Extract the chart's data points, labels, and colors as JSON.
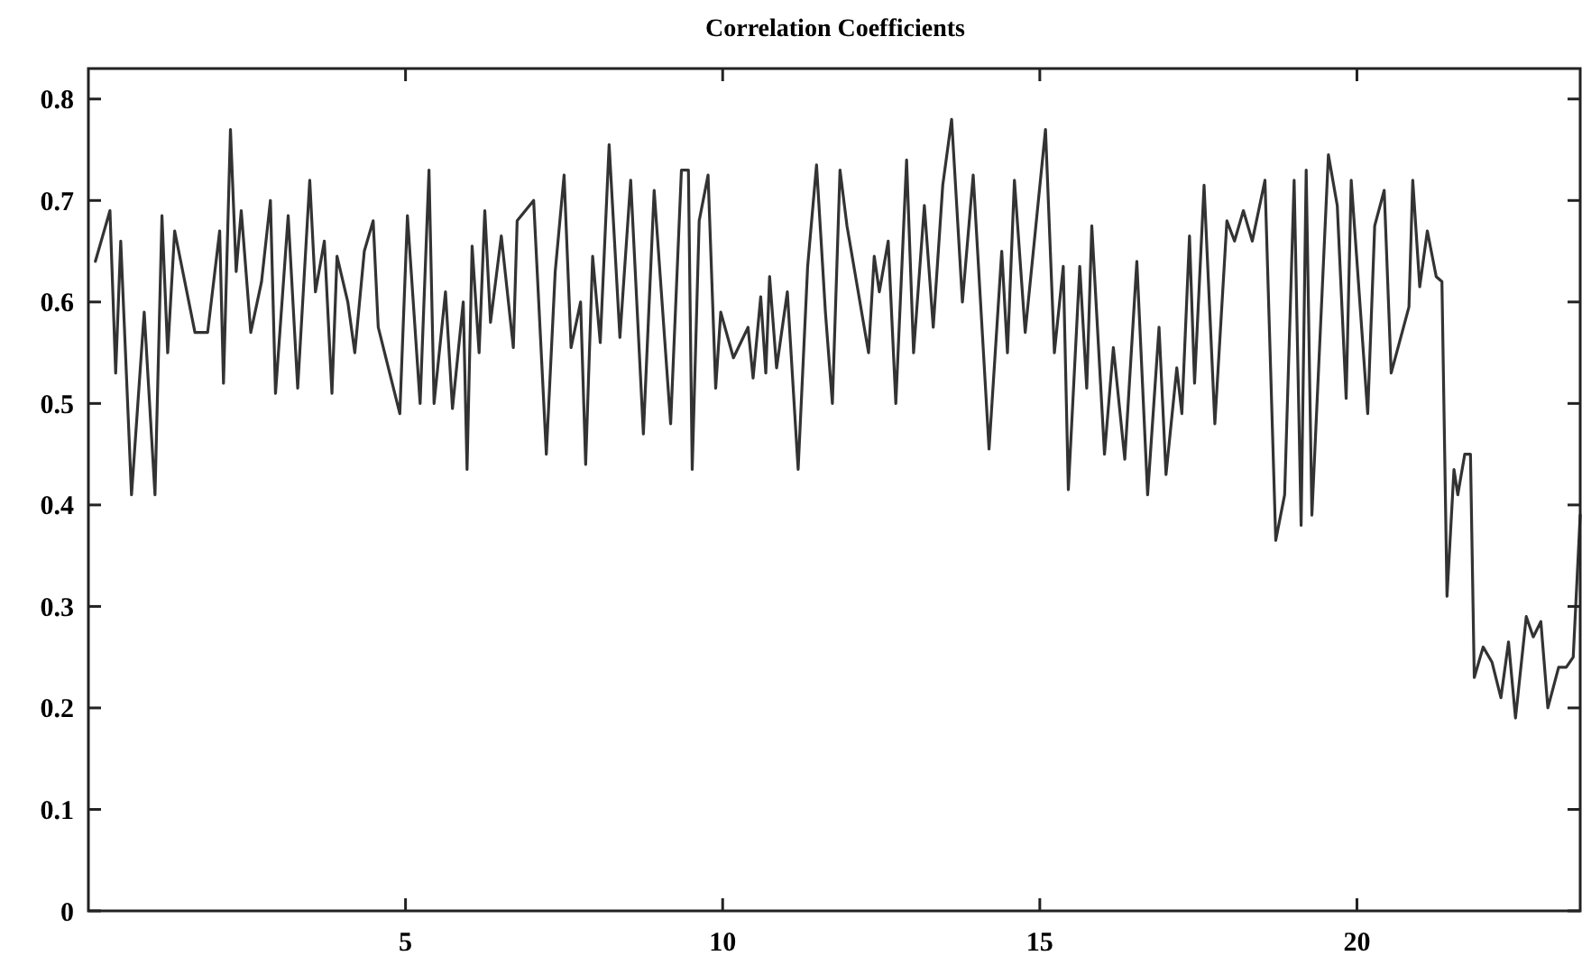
{
  "chart_data": {
    "type": "line",
    "title": "Correlation Coefficients",
    "xlim": [
      0,
      23.52
    ],
    "xticks": [
      5,
      10,
      15,
      20
    ],
    "ylim": [
      0,
      0.83
    ],
    "yticks": [
      0,
      0.1,
      0.2,
      0.3,
      0.4,
      0.5,
      0.6,
      0.7,
      0.8
    ],
    "grid": false,
    "marker": "none",
    "line_style": "solid",
    "series": [
      {
        "color": "#333333",
        "x": [
          0.11,
          0.34,
          0.43,
          0.51,
          0.68,
          0.88,
          1.05,
          1.16,
          1.25,
          1.36,
          1.68,
          1.88,
          2.07,
          2.13,
          2.24,
          2.33,
          2.41,
          2.56,
          2.73,
          2.87,
          2.95,
          3.15,
          3.3,
          3.49,
          3.58,
          3.72,
          3.84,
          3.92,
          4.09,
          4.2,
          4.35,
          4.49,
          4.57,
          4.91,
          5.03,
          5.23,
          5.37,
          5.45,
          5.63,
          5.74,
          5.91,
          5.97,
          6.05,
          6.16,
          6.25,
          6.34,
          6.51,
          6.7,
          6.76,
          7.02,
          7.22,
          7.36,
          7.5,
          7.61,
          7.76,
          7.84,
          7.95,
          8.07,
          8.21,
          8.38,
          8.55,
          8.75,
          8.92,
          9.18,
          9.35,
          9.46,
          9.52,
          9.63,
          9.77,
          9.89,
          9.97,
          10.17,
          10.4,
          10.48,
          10.6,
          10.68,
          10.74,
          10.85,
          11.02,
          11.19,
          11.34,
          11.48,
          11.62,
          11.73,
          11.85,
          11.96,
          12.3,
          12.39,
          12.47,
          12.61,
          12.73,
          12.9,
          13.01,
          13.18,
          13.32,
          13.47,
          13.61,
          13.78,
          13.95,
          14.2,
          14.4,
          14.49,
          14.6,
          14.77,
          15.09,
          15.23,
          15.37,
          15.45,
          15.63,
          15.74,
          15.82,
          16.02,
          16.16,
          16.34,
          16.53,
          16.7,
          16.88,
          16.99,
          17.16,
          17.24,
          17.36,
          17.44,
          17.59,
          17.76,
          17.95,
          18.07,
          18.21,
          18.35,
          18.55,
          18.72,
          18.86,
          19.01,
          19.12,
          19.2,
          19.29,
          19.55,
          19.69,
          19.83,
          19.91,
          20.17,
          20.28,
          20.43,
          20.54,
          20.82,
          20.88,
          20.99,
          21.11,
          21.25,
          21.34,
          21.42,
          21.53,
          21.59,
          21.7,
          21.79,
          21.85,
          21.99,
          22.13,
          22.27,
          22.39,
          22.5,
          22.67,
          22.78,
          22.9,
          23.01,
          23.18,
          23.3,
          23.41,
          23.52
        ],
        "values": [
          0.64,
          0.69,
          0.53,
          0.66,
          0.41,
          0.59,
          0.41,
          0.685,
          0.55,
          0.67,
          0.57,
          0.57,
          0.67,
          0.52,
          0.77,
          0.63,
          0.69,
          0.57,
          0.62,
          0.7,
          0.51,
          0.685,
          0.515,
          0.72,
          0.61,
          0.66,
          0.51,
          0.645,
          0.6,
          0.55,
          0.65,
          0.68,
          0.575,
          0.49,
          0.685,
          0.5,
          0.73,
          0.5,
          0.61,
          0.495,
          0.6,
          0.435,
          0.655,
          0.55,
          0.69,
          0.58,
          0.665,
          0.555,
          0.68,
          0.7,
          0.45,
          0.63,
          0.725,
          0.555,
          0.6,
          0.44,
          0.645,
          0.56,
          0.755,
          0.565,
          0.72,
          0.47,
          0.71,
          0.48,
          0.73,
          0.73,
          0.435,
          0.68,
          0.725,
          0.515,
          0.59,
          0.545,
          0.575,
          0.525,
          0.605,
          0.53,
          0.625,
          0.535,
          0.61,
          0.435,
          0.635,
          0.735,
          0.59,
          0.5,
          0.73,
          0.675,
          0.55,
          0.645,
          0.61,
          0.66,
          0.5,
          0.74,
          0.55,
          0.695,
          0.575,
          0.715,
          0.78,
          0.6,
          0.725,
          0.455,
          0.65,
          0.55,
          0.72,
          0.57,
          0.77,
          0.55,
          0.635,
          0.415,
          0.635,
          0.515,
          0.675,
          0.45,
          0.555,
          0.445,
          0.64,
          0.41,
          0.575,
          0.43,
          0.535,
          0.49,
          0.665,
          0.52,
          0.715,
          0.48,
          0.68,
          0.66,
          0.69,
          0.66,
          0.72,
          0.365,
          0.41,
          0.72,
          0.38,
          0.73,
          0.39,
          0.745,
          0.695,
          0.505,
          0.72,
          0.49,
          0.675,
          0.71,
          0.53,
          0.595,
          0.72,
          0.615,
          0.67,
          0.625,
          0.62,
          0.31,
          0.435,
          0.41,
          0.45,
          0.45,
          0.23,
          0.26,
          0.245,
          0.21,
          0.265,
          0.19,
          0.29,
          0.27,
          0.285,
          0.2,
          0.24,
          0.24,
          0.25,
          0.39
        ]
      }
    ]
  }
}
